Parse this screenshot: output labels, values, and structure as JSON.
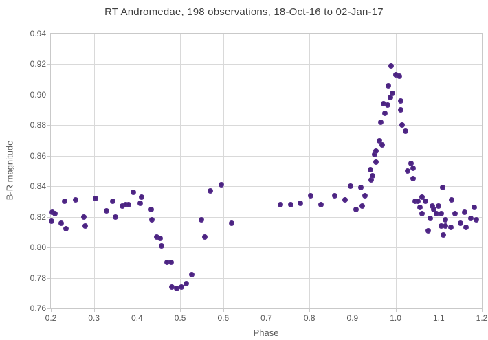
{
  "chart_data": {
    "type": "scatter",
    "title": "RT Andromedae, 198 observations, 18-Oct-16 to 02-Jan-17",
    "xlabel": "Phase",
    "ylabel": "B-R magnitude",
    "xlim": [
      0.2,
      1.2
    ],
    "ylim": [
      0.76,
      0.94
    ],
    "xticks": [
      0.2,
      0.3,
      0.4,
      0.5,
      0.6,
      0.7,
      0.8,
      0.9,
      1.0,
      1.1,
      1.2
    ],
    "yticks": [
      0.76,
      0.78,
      0.8,
      0.82,
      0.84,
      0.86,
      0.88,
      0.9,
      0.92,
      0.94
    ],
    "grid": true,
    "legend_position": "none",
    "marker_color": "#532a8a",
    "series_name": "B-R magnitude vs Phase",
    "points": [
      [
        0.201,
        0.817
      ],
      [
        0.203,
        0.823
      ],
      [
        0.21,
        0.822
      ],
      [
        0.224,
        0.816
      ],
      [
        0.232,
        0.83
      ],
      [
        0.235,
        0.812
      ],
      [
        0.257,
        0.831
      ],
      [
        0.276,
        0.82
      ],
      [
        0.28,
        0.814
      ],
      [
        0.303,
        0.832
      ],
      [
        0.329,
        0.824
      ],
      [
        0.343,
        0.83
      ],
      [
        0.35,
        0.82
      ],
      [
        0.366,
        0.827
      ],
      [
        0.374,
        0.828
      ],
      [
        0.38,
        0.828
      ],
      [
        0.391,
        0.836
      ],
      [
        0.408,
        0.829
      ],
      [
        0.411,
        0.833
      ],
      [
        0.433,
        0.825
      ],
      [
        0.435,
        0.818
      ],
      [
        0.446,
        0.807
      ],
      [
        0.454,
        0.806
      ],
      [
        0.456,
        0.801
      ],
      [
        0.469,
        0.79
      ],
      [
        0.479,
        0.79
      ],
      [
        0.48,
        0.774
      ],
      [
        0.492,
        0.773
      ],
      [
        0.503,
        0.774
      ],
      [
        0.514,
        0.776
      ],
      [
        0.527,
        0.782
      ],
      [
        0.55,
        0.818
      ],
      [
        0.557,
        0.807
      ],
      [
        0.57,
        0.837
      ],
      [
        0.595,
        0.841
      ],
      [
        0.619,
        0.816
      ],
      [
        0.732,
        0.828
      ],
      [
        0.756,
        0.828
      ],
      [
        0.779,
        0.829
      ],
      [
        0.803,
        0.834
      ],
      [
        0.826,
        0.828
      ],
      [
        0.859,
        0.834
      ],
      [
        0.883,
        0.831
      ],
      [
        0.895,
        0.84
      ],
      [
        0.908,
        0.825
      ],
      [
        0.919,
        0.839
      ],
      [
        0.923,
        0.827
      ],
      [
        0.929,
        0.834
      ],
      [
        0.941,
        0.851
      ],
      [
        0.943,
        0.844
      ],
      [
        0.947,
        0.847
      ],
      [
        0.951,
        0.861
      ],
      [
        0.954,
        0.863
      ],
      [
        0.954,
        0.856
      ],
      [
        0.963,
        0.87
      ],
      [
        0.965,
        0.882
      ],
      [
        0.968,
        0.867
      ],
      [
        0.972,
        0.894
      ],
      [
        0.975,
        0.888
      ],
      [
        0.981,
        0.893
      ],
      [
        0.983,
        0.906
      ],
      [
        0.988,
        0.898
      ],
      [
        0.989,
        0.919
      ],
      [
        0.992,
        0.901
      ],
      [
        1.0,
        0.913
      ],
      [
        1.008,
        0.912
      ],
      [
        1.012,
        0.896
      ],
      [
        1.012,
        0.89
      ],
      [
        1.015,
        0.88
      ],
      [
        1.023,
        0.876
      ],
      [
        1.028,
        0.85
      ],
      [
        1.036,
        0.855
      ],
      [
        1.04,
        0.852
      ],
      [
        1.041,
        0.845
      ],
      [
        1.045,
        0.83
      ],
      [
        1.052,
        0.83
      ],
      [
        1.057,
        0.826
      ],
      [
        1.061,
        0.833
      ],
      [
        1.062,
        0.822
      ],
      [
        1.07,
        0.83
      ],
      [
        1.076,
        0.811
      ],
      [
        1.081,
        0.819
      ],
      [
        1.085,
        0.827
      ],
      [
        1.089,
        0.825
      ],
      [
        1.094,
        0.822
      ],
      [
        1.1,
        0.827
      ],
      [
        1.106,
        0.814
      ],
      [
        1.106,
        0.822
      ],
      [
        1.109,
        0.839
      ],
      [
        1.11,
        0.808
      ],
      [
        1.115,
        0.818
      ],
      [
        1.115,
        0.814
      ],
      [
        1.129,
        0.813
      ],
      [
        1.13,
        0.831
      ],
      [
        1.138,
        0.822
      ],
      [
        1.151,
        0.816
      ],
      [
        1.16,
        0.823
      ],
      [
        1.163,
        0.813
      ],
      [
        1.174,
        0.819
      ],
      [
        1.183,
        0.826
      ],
      [
        1.188,
        0.818
      ]
    ]
  }
}
